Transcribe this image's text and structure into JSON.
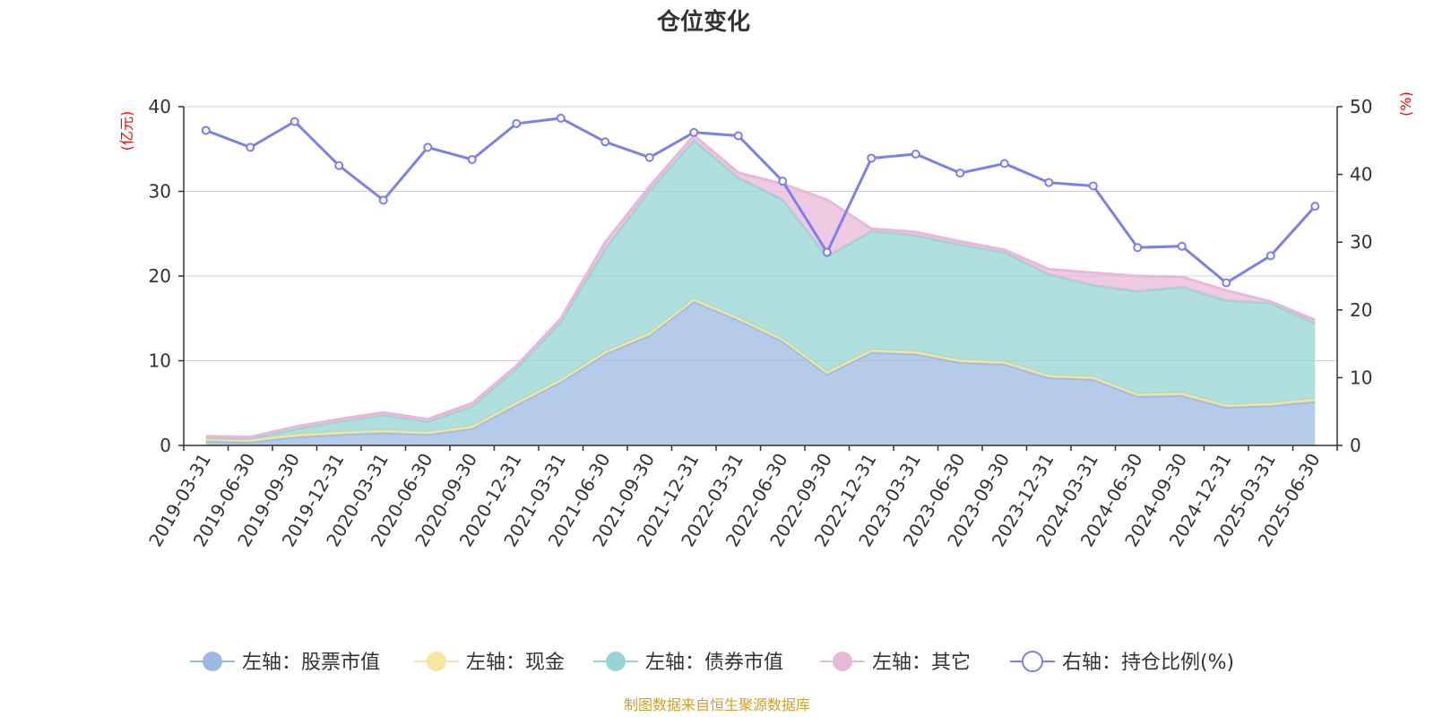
{
  "chart_data": {
    "type": "area",
    "title": "仓位变化",
    "left_axis": {
      "unit": "(亿元)",
      "ylim": [
        0,
        40
      ],
      "ticks": [
        0,
        10,
        20,
        30,
        40
      ]
    },
    "right_axis": {
      "unit": "(%)",
      "ylim": [
        0,
        50
      ],
      "ticks": [
        0,
        10,
        20,
        30,
        40,
        50
      ]
    },
    "categories": [
      "2019-03-31",
      "2019-06-30",
      "2019-09-30",
      "2019-12-31",
      "2020-03-31",
      "2020-06-30",
      "2020-09-30",
      "2020-12-31",
      "2021-03-31",
      "2021-06-30",
      "2021-09-30",
      "2021-12-31",
      "2022-03-31",
      "2022-06-30",
      "2022-09-30",
      "2022-12-31",
      "2023-03-31",
      "2023-06-30",
      "2023-09-30",
      "2023-12-31",
      "2024-03-31",
      "2024-06-30",
      "2024-09-30",
      "2024-12-31",
      "2025-03-31",
      "2025-06-30"
    ],
    "series": [
      {
        "name": "左轴：股票市值",
        "axis": "left",
        "stacked": true,
        "color": "#9bb9e3",
        "values": [
          0.5,
          0.4,
          1.0,
          1.3,
          1.5,
          1.3,
          2.0,
          4.8,
          7.5,
          10.8,
          13.0,
          17.0,
          14.8,
          12.3,
          8.4,
          11.0,
          10.8,
          9.8,
          9.6,
          8.0,
          7.8,
          5.8,
          5.9,
          4.5,
          4.7,
          5.2
        ]
      },
      {
        "name": "左轴：现金",
        "axis": "left",
        "stacked": true,
        "color": "#f8e6a0",
        "values": [
          0.3,
          0.3,
          0.3,
          0.3,
          0.3,
          0.3,
          0.3,
          0.3,
          0.3,
          0.3,
          0.3,
          0.3,
          0.3,
          0.3,
          0.3,
          0.3,
          0.3,
          0.3,
          0.3,
          0.3,
          0.3,
          0.3,
          0.3,
          0.3,
          0.3,
          0.3
        ]
      },
      {
        "name": "左轴：债券市值",
        "axis": "left",
        "stacked": true,
        "color": "#96d6d2",
        "values": [
          0.1,
          0.1,
          0.6,
          1.2,
          1.8,
          1.2,
          2.3,
          4.0,
          6.8,
          12.1,
          16.8,
          18.7,
          16.5,
          16.4,
          13.6,
          14.0,
          13.7,
          13.6,
          12.9,
          11.9,
          10.8,
          12.1,
          12.5,
          12.3,
          11.8,
          8.9
        ]
      },
      {
        "name": "左轴：其它",
        "axis": "left",
        "stacked": true,
        "color": "#e8b8d9",
        "values": [
          0.2,
          0.2,
          0.3,
          0.3,
          0.3,
          0.3,
          0.4,
          0.3,
          0.4,
          0.8,
          0.5,
          0.6,
          0.6,
          1.9,
          6.7,
          0.3,
          0.4,
          0.4,
          0.3,
          0.6,
          1.5,
          1.8,
          1.2,
          1.2,
          0.2,
          0.4
        ]
      },
      {
        "name": "右轴：持仓比例(%)",
        "axis": "right",
        "stacked": false,
        "color": "#7b7fef",
        "values": [
          46.5,
          44.0,
          47.8,
          41.3,
          36.2,
          44.0,
          42.2,
          47.5,
          48.3,
          44.8,
          42.5,
          46.2,
          45.7,
          39.0,
          28.5,
          42.4,
          43.0,
          40.2,
          41.6,
          38.8,
          38.3,
          29.2,
          29.4,
          24.0,
          28.0,
          35.3
        ]
      }
    ],
    "grid": true,
    "legend_position": "bottom",
    "source": "制图数据来自恒生聚源数据库"
  }
}
